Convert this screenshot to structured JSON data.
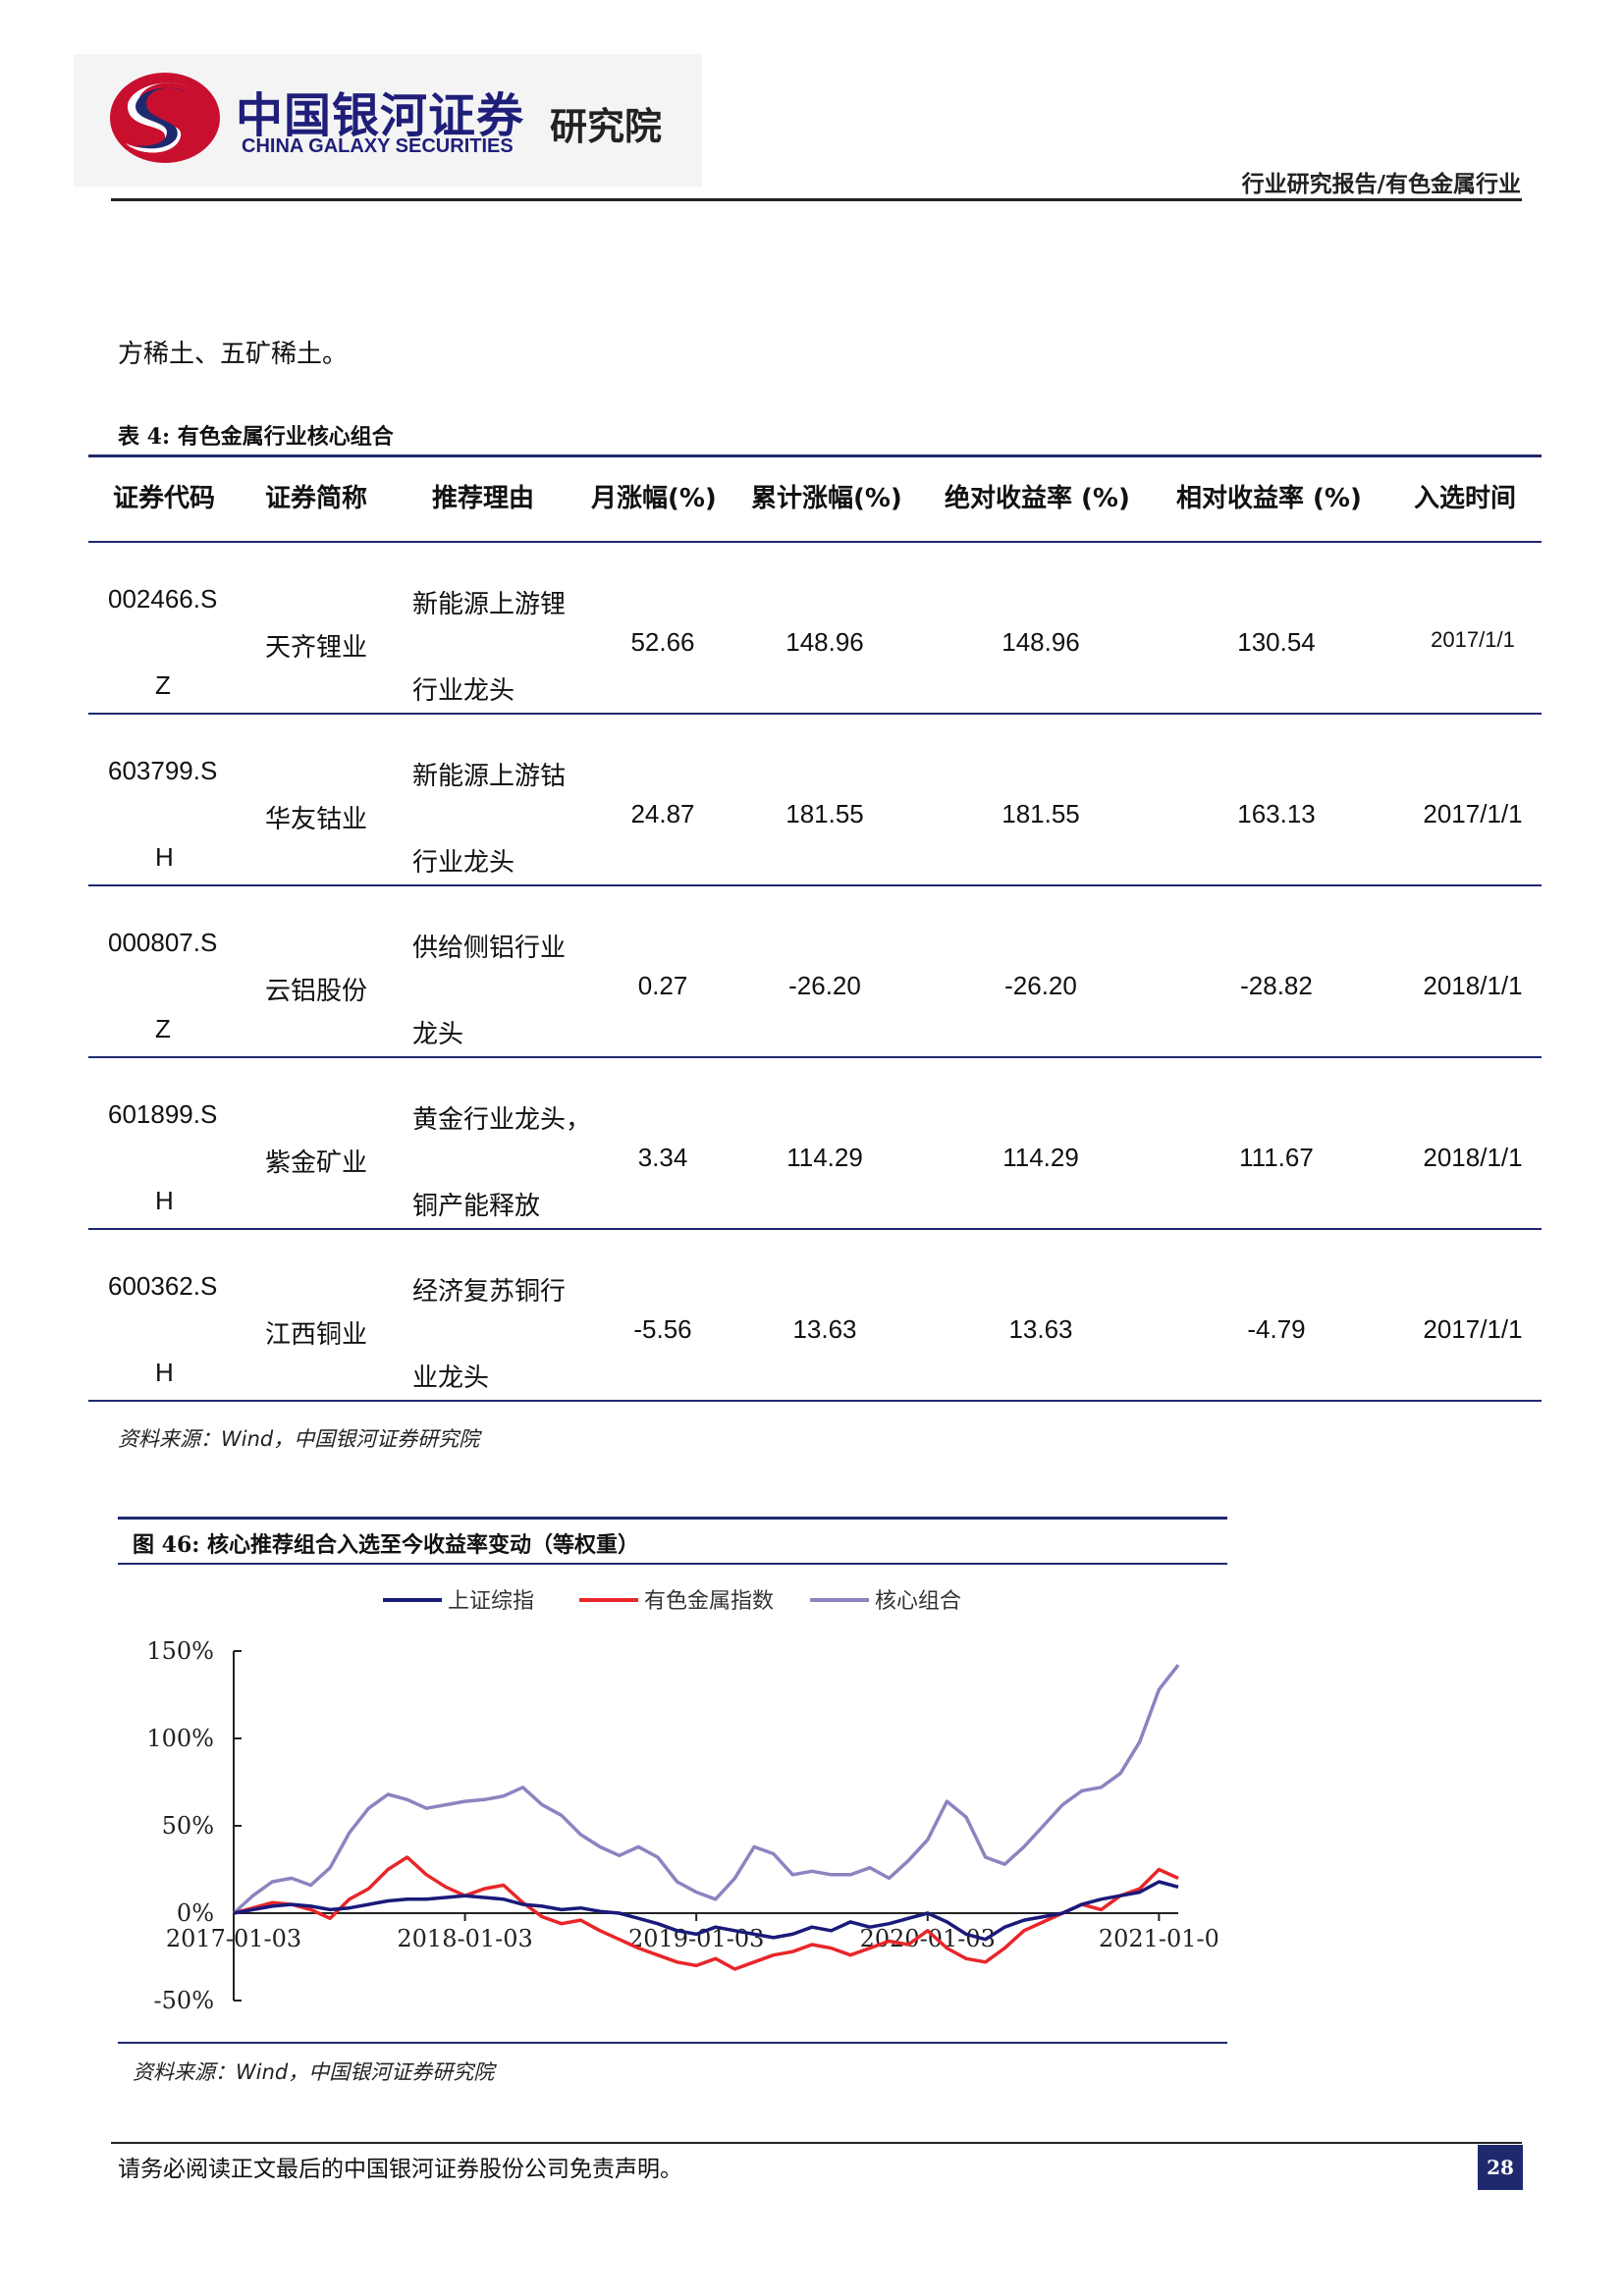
{
  "header": {
    "logo_cn": "中国银河证券",
    "logo_en": "CHINA GALAXY SECURITIES",
    "logo_institute": "研究院",
    "category": "行业研究报告/有色金属行业"
  },
  "intro_text": "方稀土、五矿稀土。",
  "table": {
    "caption": "表 4:  有色金属行业核心组合",
    "headers": [
      "证券代码",
      "证券简称",
      "推荐理由",
      "月涨幅(%)",
      "累计涨幅(%)",
      "绝对收益率 (%)",
      "相对收益率 (%)",
      "入选时间"
    ],
    "rows": [
      {
        "code1": "002466.S",
        "code2": "Z",
        "name": "天齐锂业",
        "reason1": "新能源上游锂",
        "reason2": "行业龙头",
        "monthly": "52.66",
        "cumulative": "148.96",
        "absolute": "148.96",
        "relative": "130.54",
        "date": "2017/1/1"
      },
      {
        "code1": "603799.S",
        "code2": "H",
        "name": "华友钴业",
        "reason1": "新能源上游钴",
        "reason2": "行业龙头",
        "monthly": "24.87",
        "cumulative": "181.55",
        "absolute": "181.55",
        "relative": "163.13",
        "date": "2017/1/1"
      },
      {
        "code1": "000807.S",
        "code2": "Z",
        "name": "云铝股份",
        "reason1": "供给侧铝行业",
        "reason2": "龙头",
        "monthly": "0.27",
        "cumulative": "-26.20",
        "absolute": "-26.20",
        "relative": "-28.82",
        "date": "2018/1/1"
      },
      {
        "code1": "601899.S",
        "code2": "H",
        "name": "紫金矿业",
        "reason1": "黄金行业龙头，",
        "reason2": "铜产能释放",
        "monthly": "3.34",
        "cumulative": "114.29",
        "absolute": "114.29",
        "relative": "111.67",
        "date": "2018/1/1"
      },
      {
        "code1": "600362.S",
        "code2": "H",
        "name": "江西铜业",
        "reason1": "经济复苏铜行",
        "reason2": "业龙头",
        "monthly": "-5.56",
        "cumulative": "13.63",
        "absolute": "13.63",
        "relative": "-4.79",
        "date": "2017/1/1"
      }
    ],
    "source": "资料来源：Wind，中国银河证券研究院"
  },
  "figure": {
    "caption": "图 46:  核心推荐组合入选至今收益率变动（等权重）",
    "source": "资料来源：Wind，中国银河证券研究院"
  },
  "chart_data": {
    "type": "line",
    "x_ticks": [
      "2017-01-03",
      "2018-01-03",
      "2019-01-03",
      "2020-01-03",
      "2021-01-0"
    ],
    "x_tick_values": [
      0,
      12,
      24,
      36,
      48
    ],
    "x_range": [
      0,
      49
    ],
    "y_ticks": [
      "150%",
      "100%",
      "50%",
      "0%",
      "-50%"
    ],
    "y_tick_values": [
      150,
      100,
      50,
      0,
      -50
    ],
    "ylim": [
      -50,
      150
    ],
    "legend_position": "top",
    "x_month_offsets": [
      0,
      1,
      2,
      3,
      4,
      5,
      6,
      7,
      8,
      9,
      10,
      11,
      12,
      13,
      14,
      15,
      16,
      17,
      18,
      19,
      20,
      21,
      22,
      23,
      24,
      25,
      26,
      27,
      28,
      29,
      30,
      31,
      32,
      33,
      34,
      35,
      36,
      37,
      38,
      39,
      40,
      41,
      42,
      43,
      44,
      45,
      46,
      47,
      48,
      49
    ],
    "series": [
      {
        "name": "上证综指",
        "color": "#1a1a7a",
        "values": [
          0,
          2,
          4,
          5,
          4,
          2,
          3,
          5,
          7,
          8,
          8,
          9,
          10,
          9,
          8,
          5,
          4,
          2,
          3,
          1,
          0,
          -3,
          -6,
          -10,
          -12,
          -8,
          -10,
          -12,
          -14,
          -12,
          -8,
          -10,
          -5,
          -8,
          -6,
          -3,
          0,
          -5,
          -12,
          -15,
          -8,
          -4,
          -2,
          0,
          5,
          8,
          10,
          12,
          18,
          15
        ]
      },
      {
        "name": "有色金属指数",
        "color": "#e8262a",
        "values": [
          0,
          3,
          6,
          5,
          2,
          -3,
          8,
          14,
          25,
          32,
          22,
          15,
          10,
          14,
          16,
          6,
          -2,
          -6,
          -4,
          -10,
          -15,
          -20,
          -24,
          -28,
          -30,
          -26,
          -32,
          -28,
          -24,
          -22,
          -18,
          -20,
          -24,
          -20,
          -16,
          -18,
          -10,
          -20,
          -26,
          -28,
          -20,
          -10,
          -5,
          0,
          5,
          2,
          10,
          14,
          25,
          20
        ]
      },
      {
        "name": "核心组合",
        "color": "#8a84c0",
        "values": [
          0,
          10,
          18,
          20,
          16,
          26,
          46,
          60,
          68,
          65,
          60,
          62,
          64,
          65,
          67,
          72,
          62,
          56,
          45,
          38,
          33,
          38,
          32,
          18,
          12,
          8,
          20,
          38,
          34,
          22,
          24,
          22,
          22,
          26,
          20,
          30,
          42,
          64,
          55,
          32,
          28,
          38,
          50,
          62,
          70,
          72,
          80,
          98,
          128,
          142
        ]
      }
    ]
  },
  "footer": {
    "disclaimer": "请务必阅读正文最后的中国银河证券股份公司免责声明。",
    "page_number": "28"
  }
}
